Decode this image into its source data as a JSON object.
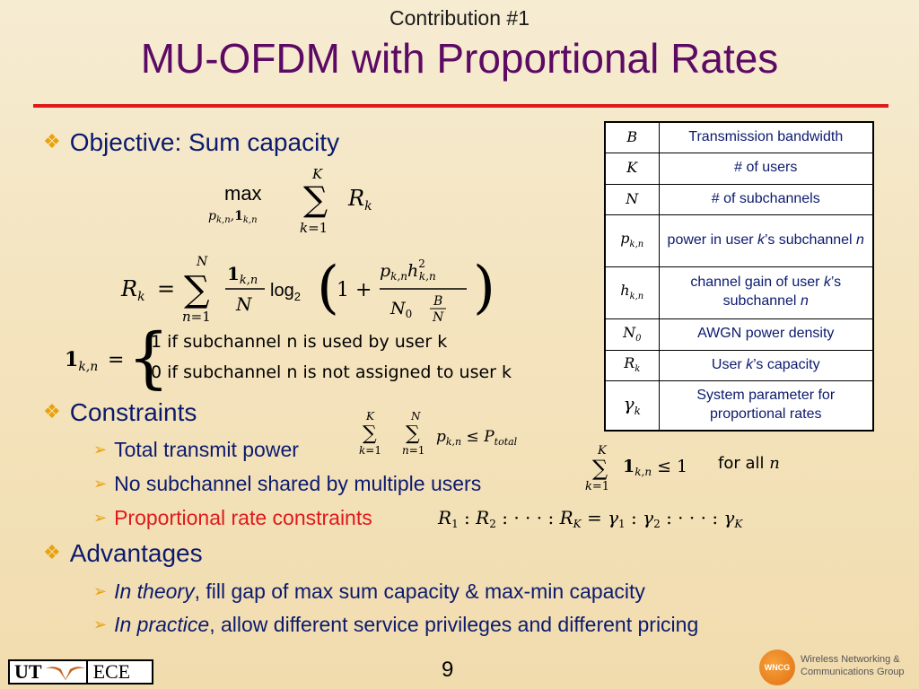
{
  "header": {
    "subtitle": "Contribution #1",
    "title": "MU-OFDM with Proportional Rates"
  },
  "bullets": {
    "objective": "Objective: Sum capacity",
    "constraints": "Constraints",
    "advantages": "Advantages"
  },
  "constraints": {
    "power": "Total transmit power",
    "subchannel": "No subchannel shared by multiple users",
    "proportional": "Proportional rate constraints"
  },
  "advantages": {
    "theory_italic": "In theory",
    "theory_rest": ", fill gap of max sum capacity & max-min capacity",
    "practice_italic": "In practice",
    "practice_rest": ", allow different service privileges and different pricing"
  },
  "math": {
    "indicator_used": "1  if subchannel n is used by user k",
    "indicator_not": "0  if subchannel n is not assigned to user k",
    "for_all": "for all"
  },
  "symbol_table": [
    {
      "symbol": "B",
      "desc": "Transmission bandwidth"
    },
    {
      "symbol": "K",
      "desc": "# of users"
    },
    {
      "symbol": "N",
      "desc": "# of subchannels"
    },
    {
      "symbol": "p_{k,n}",
      "desc_pre": "power in user ",
      "desc_em": "k",
      "desc_post": "’s subchannel ",
      "desc_em2": "n"
    },
    {
      "symbol": "h_{k,n}",
      "desc_pre": "channel gain of user ",
      "desc_em": "k",
      "desc_post": "’s subchannel ",
      "desc_em2": "n"
    },
    {
      "symbol": "N_0",
      "desc": "AWGN power density"
    },
    {
      "symbol": "R_k",
      "desc_pre": "User ",
      "desc_em": "k",
      "desc_post": "’s capacity"
    },
    {
      "symbol": "γ_k",
      "desc": "System parameter for proportional rates"
    }
  ],
  "footer": {
    "left_ut": "UT",
    "left_ece": "ECE",
    "page": "9",
    "logo_short": "WNCG",
    "logo_line1": "Wireless Networking &",
    "logo_line2": "Communications Group"
  },
  "colors": {
    "title": "#5c0a63",
    "body_text": "#0b1a6e",
    "rule": "#e0191c",
    "bullet_marker": "#e8a20c",
    "highlight": "#e0191c"
  },
  "icons": {
    "bullet": "diamond-cluster-icon",
    "sub_bullet": "arrow-right-icon",
    "logo_left": "longhorn-icon",
    "logo_right": "wncg-logo-icon"
  }
}
